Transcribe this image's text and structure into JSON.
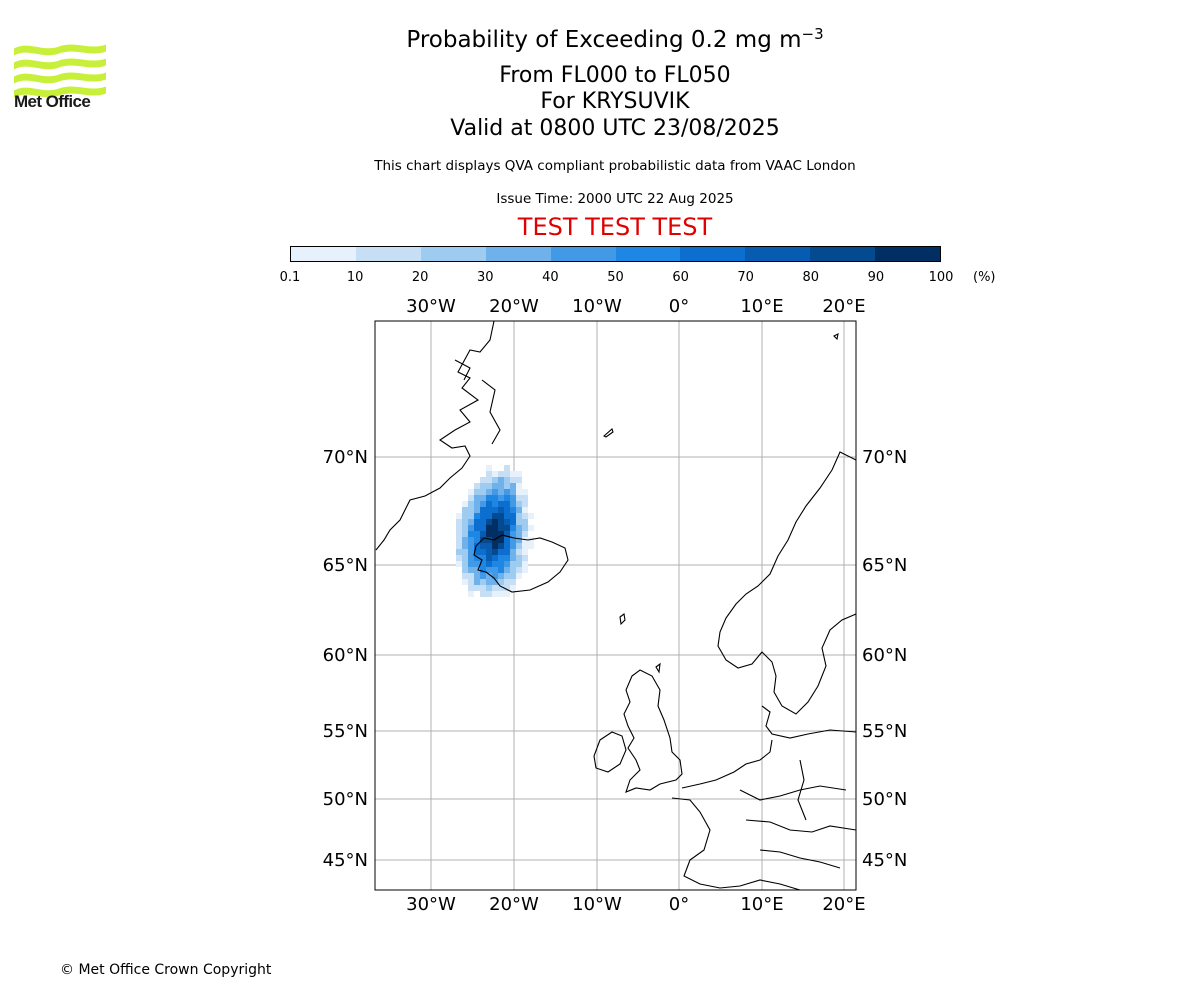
{
  "header": {
    "logo_text": "Met Office",
    "title_main": "Probability of Exceeding 0.2 mg m",
    "title_sup": "−3",
    "subtitle_levels": "From FL000 to FL050",
    "subtitle_location": "For KRYSUVIK",
    "subtitle_valid": "Valid at 0800 UTC 23/08/2025",
    "description": "This chart displays QVA compliant probabilistic data from VAAC London",
    "issue_time": "Issue Time: 2000 UTC 22 Aug 2025",
    "test_banner": "TEST TEST TEST"
  },
  "colorbar": {
    "ticks": [
      "0.1",
      "10",
      "20",
      "30",
      "40",
      "50",
      "60",
      "70",
      "80",
      "90",
      "100"
    ],
    "unit": "(%)",
    "colors": [
      "#e7f1fb",
      "#c6dff5",
      "#9ecbf0",
      "#6fb1ea",
      "#429ae6",
      "#1e86e3",
      "#0c6fd0",
      "#075bb0",
      "#044a91",
      "#022f63"
    ]
  },
  "map": {
    "lon_labels_top": [
      "30°W",
      "20°W",
      "10°W",
      "0°",
      "10°E",
      "20°E"
    ],
    "lon_labels_bottom": [
      "30°W",
      "20°W",
      "10°W",
      "0°",
      "10°E",
      "20°E"
    ],
    "lat_labels_left": [
      "70°N",
      "65°N",
      "60°N",
      "55°N",
      "50°N",
      "45°N"
    ],
    "lat_labels_right": [
      "70°N",
      "65°N",
      "60°N",
      "55°N",
      "50°N",
      "45°N"
    ],
    "gridline_color": "#b0b0b0",
    "plume_peak_probability_percent": 100
  },
  "footer": {
    "copyright": "© Met Office Crown Copyright"
  }
}
